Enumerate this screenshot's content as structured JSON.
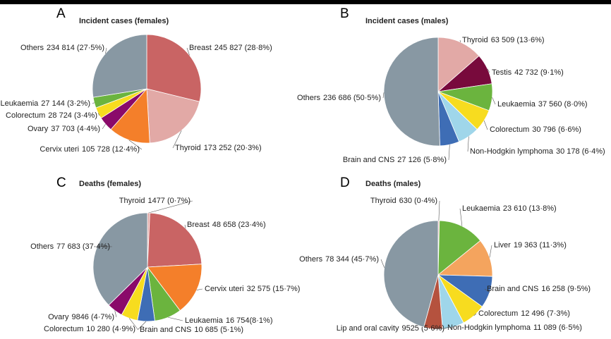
{
  "chart_data": [
    {
      "type": "pie",
      "panel": "A",
      "title": "Incident cases (females)",
      "categories": [
        "Breast",
        "Thyroid",
        "Cervix uteri",
        "Ovary",
        "Colorectum",
        "Leukaemia",
        "Others"
      ],
      "values": [
        245827,
        173252,
        105728,
        37703,
        28724,
        27144,
        234814
      ],
      "value_labels": [
        "245 827 (28·8%)",
        "173 252 (20·3%)",
        "105 728 (12·4%)",
        "37 703 (4·4%)",
        "28 724 (3·4%)",
        "27 144 (3·2%)",
        "234 814 (27·5%)"
      ],
      "colors": [
        "#c96464",
        "#e2a9a6",
        "#f47f2a",
        "#8a0a6a",
        "#f7dc1f",
        "#6bb43e",
        "#8898a3"
      ]
    },
    {
      "type": "pie",
      "panel": "B",
      "title": "Incident cases (males)",
      "categories": [
        "Thyroid",
        "Testis",
        "Leukaemia",
        "Colorectum",
        "Non-Hodgkin lymphoma",
        "Brain and CNS",
        "Others"
      ],
      "values": [
        63509,
        42732,
        37560,
        30796,
        30178,
        27126,
        236686
      ],
      "value_labels": [
        "63 509 (13·6%)",
        "42 732 (9·1%)",
        "37 560 (8·0%)",
        "30 796 (6·6%)",
        "30 178 (6·4%)",
        "27 126 (5·8%)",
        "236 686 (50·5%)"
      ],
      "colors": [
        "#e2a9a6",
        "#780a3c",
        "#6bb43e",
        "#f7dc1f",
        "#9fd6ea",
        "#3e6db5",
        "#8898a3"
      ]
    },
    {
      "type": "pie",
      "panel": "C",
      "title": "Deaths (females)",
      "categories": [
        "Thyroid",
        "Breast",
        "Cervix uteri",
        "Leukaemia",
        "Brain and CNS",
        "Colorectum",
        "Ovary",
        "Others"
      ],
      "values": [
        1477,
        48658,
        32575,
        16754,
        10685,
        10280,
        9846,
        77683
      ],
      "value_labels": [
        "1477 (0·7%)",
        "48 658 (23·4%)",
        "32 575 (15·7%)",
        "16 754(8·1%)",
        "10 685 (5·1%)",
        "10 280 (4·9%)",
        "9846 (4·7%)",
        "77 683 (37·4%)"
      ],
      "colors": [
        "#e2a9a6",
        "#c96464",
        "#f47f2a",
        "#6bb43e",
        "#3e6db5",
        "#f7dc1f",
        "#8a0a6a",
        "#8898a3"
      ]
    },
    {
      "type": "pie",
      "panel": "D",
      "title": "Deaths (males)",
      "categories": [
        "Thyroid",
        "Leukaemia",
        "Liver",
        "Brain and CNS",
        "Colorectum",
        "Non-Hodgkin lymphoma",
        "Lip and oral cavity",
        "Others"
      ],
      "values": [
        630,
        23610,
        19363,
        16258,
        12496,
        11089,
        9525,
        78344
      ],
      "value_labels": [
        "630 (0·4%)",
        "23 610 (13·8%)",
        "19 363 (11·3%)",
        "16 258 (9·5%)",
        "12 496 (7·3%)",
        "11 089 (6·5%)",
        "9525 (5·6%)",
        "78 344 (45·7%)"
      ],
      "colors": [
        "#e2a9a6",
        "#6bb43e",
        "#f4a45e",
        "#3e6db5",
        "#f7dc1f",
        "#9fd6ea",
        "#b5523e",
        "#8898a3"
      ]
    }
  ]
}
